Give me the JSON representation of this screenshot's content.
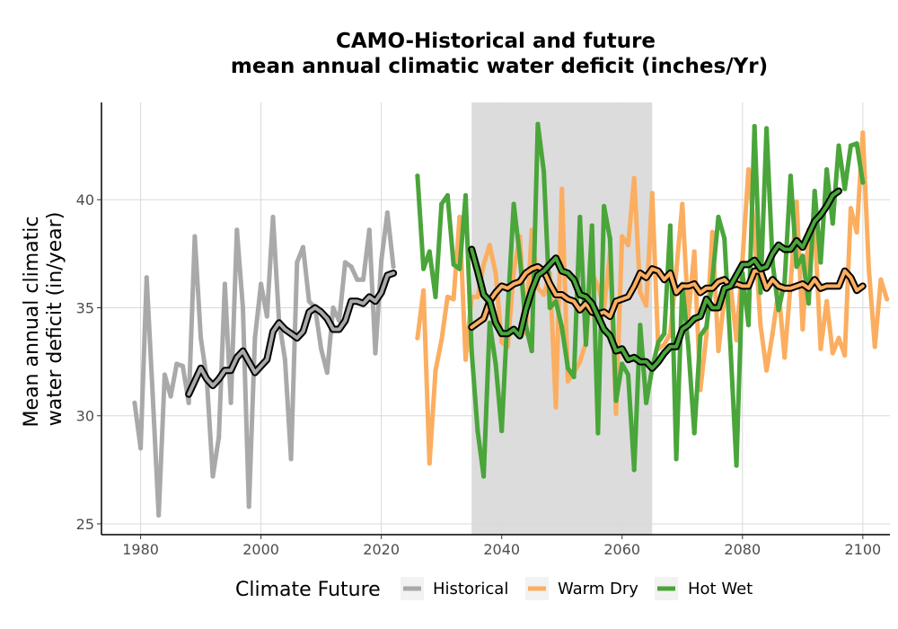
{
  "chart_data": {
    "type": "line",
    "title_line1": "CAMO-Historical and future",
    "title_line2": "mean annual climatic water deficit (inches/Yr)",
    "xlabel": "",
    "ylabel_line1": "Mean annual climatic",
    "ylabel_line2": "water deficit (in/year)",
    "xlim": [
      1973.5,
      2104.5
    ],
    "ylim": [
      24.5,
      44.5
    ],
    "x_ticks": [
      1980,
      2000,
      2020,
      2040,
      2060,
      2080,
      2100
    ],
    "y_ticks": [
      25,
      30,
      35,
      40
    ],
    "grid": true,
    "shaded_period": [
      2035,
      2065
    ],
    "shade_color": "#dcdcdc",
    "legend_title": "Climate Future",
    "legend_position": "bottom",
    "series": [
      {
        "name": "Historical",
        "color": "#a9a9a9",
        "x_start": 1979,
        "values": [
          30.6,
          28.5,
          36.4,
          31.0,
          25.4,
          31.9,
          30.9,
          32.4,
          32.3,
          30.6,
          38.3,
          33.6,
          31.7,
          27.2,
          29.0,
          36.1,
          30.6,
          38.6,
          35.0,
          25.8,
          33.6,
          36.1,
          34.6,
          39.2,
          34.4,
          32.6,
          28.0,
          37.1,
          37.8,
          35.3,
          35.0,
          33.1,
          32.0,
          35.0,
          34.4,
          37.1,
          36.9,
          36.3,
          36.3,
          38.6,
          32.9,
          37.2,
          39.4,
          36.9
        ],
        "rolling_x_start": 1988,
        "rolling": [
          31.0,
          31.6,
          32.2,
          31.7,
          31.4,
          31.7,
          32.1,
          32.1,
          32.7,
          33.0,
          32.5,
          32.0,
          32.3,
          32.6,
          33.9,
          34.3,
          34.0,
          33.8,
          33.6,
          33.9,
          34.8,
          35.0,
          34.8,
          34.5,
          34.0,
          34.0,
          34.4,
          35.3,
          35.3,
          35.2,
          35.5,
          35.3,
          35.7,
          36.5,
          36.6
        ]
      },
      {
        "name": "Warm Dry",
        "color": "#fbae60",
        "x_start": 2026,
        "values": [
          33.6,
          35.8,
          27.8,
          32.1,
          33.5,
          35.5,
          35.4,
          39.2,
          32.6,
          35.5,
          35.5,
          37.0,
          37.9,
          36.6,
          33.4,
          33.2,
          36.7,
          38.3,
          33.8,
          38.6,
          35.9,
          35.6,
          36.6,
          30.4,
          40.5,
          31.6,
          32.0,
          32.5,
          33.4,
          36.6,
          36.0,
          35.0,
          37.5,
          30.1,
          38.3,
          37.9,
          41.0,
          35.7,
          35.1,
          40.3,
          33.1,
          33.3,
          33.8,
          36.7,
          39.8,
          34.6,
          37.6,
          31.2,
          33.7,
          38.5,
          33.0,
          35.5,
          36.1,
          33.5,
          37.2,
          41.4,
          38.5,
          34.2,
          32.1,
          33.8,
          35.8,
          32.7,
          36.1,
          39.9,
          34.0,
          38.6,
          38.8,
          33.1,
          35.3,
          32.9,
          33.6,
          32.8,
          39.6,
          38.5,
          43.1,
          36.8,
          33.2,
          36.3,
          35.4
        ],
        "rolling_x_start": 2035,
        "rolling": [
          34.1,
          34.3,
          34.5,
          35.3,
          35.7,
          36.0,
          35.9,
          36.1,
          36.2,
          36.6,
          36.8,
          36.9,
          36.7,
          36.1,
          35.6,
          35.6,
          35.4,
          35.3,
          34.9,
          35.2,
          34.8,
          34.7,
          34.8,
          34.6,
          35.3,
          35.4,
          35.5,
          36.0,
          36.6,
          36.4,
          36.8,
          36.7,
          36.3,
          36.6,
          35.7,
          36.0,
          36.0,
          36.1,
          35.7,
          35.9,
          35.9,
          36.2,
          36.3,
          36.0,
          36.1,
          36.0,
          36.0,
          36.7,
          36.7,
          35.9,
          36.3,
          36.0,
          35.9,
          35.9,
          36.0,
          36.1,
          35.9,
          36.3,
          35.9,
          36.0,
          36.0,
          36.0,
          36.7,
          36.4,
          35.8,
          36.0
        ]
      },
      {
        "name": "Hot Wet",
        "color": "#4aa53a",
        "x_start": 2026,
        "values": [
          41.1,
          36.8,
          37.6,
          35.5,
          39.8,
          40.2,
          37.0,
          36.8,
          40.2,
          33.0,
          29.3,
          27.2,
          34.3,
          32.4,
          29.3,
          34.9,
          39.8,
          37.4,
          34.2,
          33.0,
          43.5,
          41.3,
          35.0,
          35.3,
          34.1,
          32.2,
          31.8,
          39.2,
          33.3,
          38.8,
          29.2,
          39.7,
          38.2,
          30.7,
          32.4,
          31.9,
          27.5,
          34.2,
          30.6,
          32.2,
          33.4,
          33.8,
          38.8,
          28.0,
          36.1,
          33.2,
          29.2,
          33.7,
          34.1,
          36.3,
          39.2,
          38.2,
          33.2,
          27.7,
          36.6,
          34.2,
          43.4,
          35.7,
          43.3,
          37.1,
          34.9,
          36.2,
          41.1,
          36.9,
          37.4,
          35.2,
          40.4,
          37.1,
          41.4,
          38.9,
          42.5,
          40.5,
          42.5,
          42.6,
          40.8
        ],
        "rolling_x_start": 2035,
        "rolling": [
          37.7,
          36.7,
          35.6,
          35.3,
          34.3,
          33.8,
          33.8,
          34.0,
          33.7,
          34.9,
          35.8,
          36.5,
          36.7,
          37.0,
          37.3,
          36.7,
          36.6,
          36.3,
          35.6,
          35.5,
          35.2,
          34.6,
          34.0,
          33.7,
          33.0,
          33.1,
          32.6,
          32.7,
          32.5,
          32.5,
          32.2,
          32.5,
          32.9,
          33.2,
          33.2,
          34.0,
          34.2,
          34.5,
          34.6,
          35.4,
          35.0,
          35.0,
          35.9,
          36.0,
          36.5,
          37.0,
          37.0,
          37.2,
          36.8,
          36.9,
          37.5,
          37.9,
          37.7,
          37.7,
          38.1,
          37.8,
          38.4,
          39.0,
          39.3,
          39.7,
          40.2,
          40.4
        ]
      }
    ]
  }
}
